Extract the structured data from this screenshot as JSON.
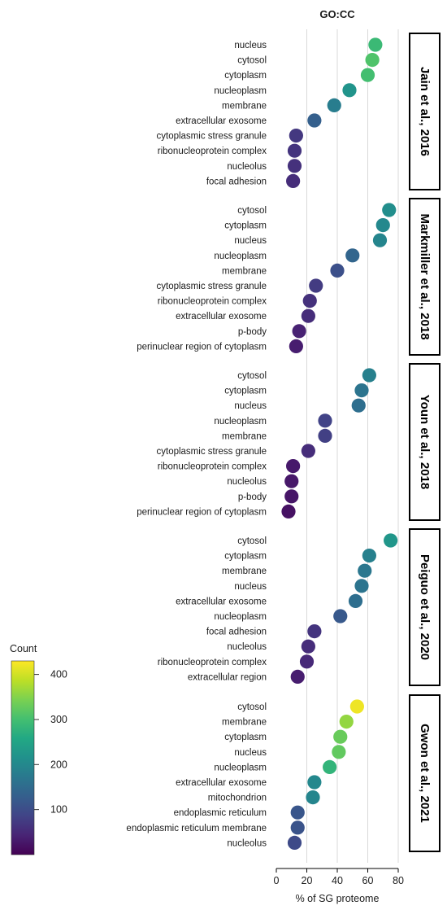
{
  "chart_data": {
    "type": "scatter",
    "title": "GO:CC",
    "xlabel": "% of SG proteome",
    "xlim": [
      0,
      80
    ],
    "xticks": [
      0,
      20,
      40,
      60,
      80
    ],
    "grid": "vertical",
    "color_legend": {
      "title": "Count",
      "ticks": [
        100,
        200,
        300,
        400
      ],
      "range": [
        0,
        430
      ],
      "colormap": "viridis",
      "placement": "left"
    },
    "panels": [
      {
        "strip": "Jain et al., 2016",
        "points": [
          {
            "term": "nucleus",
            "value": 65,
            "count": 290
          },
          {
            "term": "cytosol",
            "value": 63,
            "count": 310
          },
          {
            "term": "cytoplasm",
            "value": 60,
            "count": 300
          },
          {
            "term": "nucleoplasm",
            "value": 48,
            "count": 220
          },
          {
            "term": "membrane",
            "value": 38,
            "count": 180
          },
          {
            "term": "extracellular exosome",
            "value": 25,
            "count": 130
          },
          {
            "term": "cytoplasmic stress granule",
            "value": 13,
            "count": 70
          },
          {
            "term": "ribonucleoprotein complex",
            "value": 12,
            "count": 65
          },
          {
            "term": "nucleolus",
            "value": 12,
            "count": 60
          },
          {
            "term": "focal adhesion",
            "value": 11,
            "count": 55
          }
        ]
      },
      {
        "strip": "Markmiller et al., 2018",
        "points": [
          {
            "term": "cytosol",
            "value": 74,
            "count": 210
          },
          {
            "term": "cytoplasm",
            "value": 70,
            "count": 200
          },
          {
            "term": "nucleus",
            "value": 68,
            "count": 195
          },
          {
            "term": "nucleoplasm",
            "value": 50,
            "count": 140
          },
          {
            "term": "membrane",
            "value": 40,
            "count": 105
          },
          {
            "term": "cytoplasmic stress granule",
            "value": 26,
            "count": 75
          },
          {
            "term": "ribonucleoprotein complex",
            "value": 22,
            "count": 60
          },
          {
            "term": "extracellular exosome",
            "value": 21,
            "count": 55
          },
          {
            "term": "p-body",
            "value": 15,
            "count": 40
          },
          {
            "term": "perinuclear region of cytoplasm",
            "value": 13,
            "count": 35
          }
        ]
      },
      {
        "strip": "Youn et al., 2018",
        "points": [
          {
            "term": "cytosol",
            "value": 61,
            "count": 185
          },
          {
            "term": "cytoplasm",
            "value": 56,
            "count": 165
          },
          {
            "term": "nucleus",
            "value": 54,
            "count": 155
          },
          {
            "term": "nucleoplasm",
            "value": 32,
            "count": 85
          },
          {
            "term": "membrane",
            "value": 32,
            "count": 80
          },
          {
            "term": "cytoplasmic stress granule",
            "value": 21,
            "count": 55
          },
          {
            "term": "ribonucleoprotein complex",
            "value": 11,
            "count": 30
          },
          {
            "term": "nucleolus",
            "value": 10,
            "count": 28
          },
          {
            "term": "p-body",
            "value": 10,
            "count": 25
          },
          {
            "term": "perinuclear region of cytoplasm",
            "value": 8,
            "count": 20
          }
        ]
      },
      {
        "strip": "Peiguo et al., 2020",
        "points": [
          {
            "term": "cytosol",
            "value": 75,
            "count": 225
          },
          {
            "term": "cytoplasm",
            "value": 61,
            "count": 185
          },
          {
            "term": "membrane",
            "value": 58,
            "count": 170
          },
          {
            "term": "nucleus",
            "value": 56,
            "count": 165
          },
          {
            "term": "extracellular exosome",
            "value": 52,
            "count": 155
          },
          {
            "term": "nucleoplasm",
            "value": 42,
            "count": 120
          },
          {
            "term": "focal adhesion",
            "value": 25,
            "count": 65
          },
          {
            "term": "nucleolus",
            "value": 21,
            "count": 55
          },
          {
            "term": "ribonucleoprotein complex",
            "value": 20,
            "count": 50
          },
          {
            "term": "extracellular region",
            "value": 14,
            "count": 35
          }
        ]
      },
      {
        "strip": "Gwon et al., 2021",
        "points": [
          {
            "term": "cytosol",
            "value": 53,
            "count": 420
          },
          {
            "term": "membrane",
            "value": 46,
            "count": 360
          },
          {
            "term": "cytoplasm",
            "value": 42,
            "count": 330
          },
          {
            "term": "nucleus",
            "value": 41,
            "count": 325
          },
          {
            "term": "nucleoplasm",
            "value": 35,
            "count": 280
          },
          {
            "term": "extracellular exosome",
            "value": 25,
            "count": 200
          },
          {
            "term": "mitochondrion",
            "value": 24,
            "count": 195
          },
          {
            "term": "endoplasmic reticulum",
            "value": 14,
            "count": 115
          },
          {
            "term": "endoplasmic reticulum membrane",
            "value": 14,
            "count": 110
          },
          {
            "term": "nucleolus",
            "value": 12,
            "count": 95
          }
        ]
      }
    ]
  }
}
